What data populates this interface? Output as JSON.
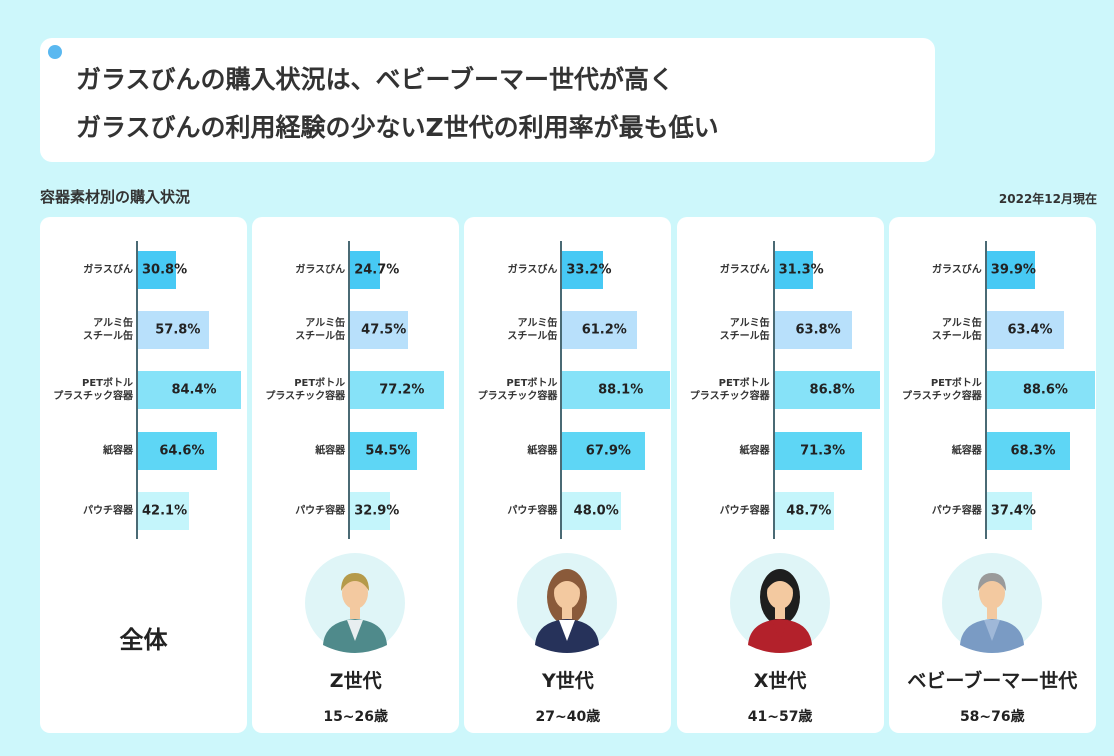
{
  "header": {
    "title": "ガラスびんの購入状況は、ベビーブーマー世代が高く\nガラスびんの利用経験の少ないZ世代の利用率が最も低い",
    "subtitle": "容器素材別の購入状況",
    "date": "2022年12月現在"
  },
  "chart_data": [
    {
      "type": "bar",
      "title": "全体",
      "categories": [
        "ガラスびん",
        "アルミ缶\nスチール缶",
        "PETボトル\nプラスチック容器",
        "紙容器",
        "パウチ容器"
      ],
      "values": [
        30.8,
        57.8,
        84.4,
        64.6,
        42.1
      ],
      "value_labels": [
        "30.8%",
        "57.8%",
        "84.4%",
        "64.6%",
        "42.1%"
      ],
      "colors": [
        "#47c9f4",
        "#b8e0fb",
        "#86e2f8",
        "#5ed6f5",
        "#c4f5fb"
      ]
    },
    {
      "type": "bar",
      "title": "Z世代",
      "subtitle": "15~26歳",
      "categories": [
        "ガラスびん",
        "アルミ缶\nスチール缶",
        "PETボトル\nプラスチック容器",
        "紙容器",
        "パウチ容器"
      ],
      "values": [
        24.7,
        47.5,
        77.2,
        54.5,
        32.9
      ],
      "value_labels": [
        "24.7%",
        "47.5%",
        "77.2%",
        "54.5%",
        "32.9%"
      ],
      "colors": [
        "#47c9f4",
        "#b8e0fb",
        "#86e2f8",
        "#5ed6f5",
        "#c4f5fb"
      ]
    },
    {
      "type": "bar",
      "title": "Y世代",
      "subtitle": "27~40歳",
      "categories": [
        "ガラスびん",
        "アルミ缶\nスチール缶",
        "PETボトル\nプラスチック容器",
        "紙容器",
        "パウチ容器"
      ],
      "values": [
        33.2,
        61.2,
        88.1,
        67.9,
        48.0
      ],
      "value_labels": [
        "33.2%",
        "61.2%",
        "88.1%",
        "67.9%",
        "48.0%"
      ],
      "colors": [
        "#47c9f4",
        "#b8e0fb",
        "#86e2f8",
        "#5ed6f5",
        "#c4f5fb"
      ]
    },
    {
      "type": "bar",
      "title": "X世代",
      "subtitle": "41~57歳",
      "categories": [
        "ガラスびん",
        "アルミ缶\nスチール缶",
        "PETボトル\nプラスチック容器",
        "紙容器",
        "パウチ容器"
      ],
      "values": [
        31.3,
        63.8,
        86.8,
        71.3,
        48.7
      ],
      "value_labels": [
        "31.3%",
        "63.8%",
        "86.8%",
        "71.3%",
        "48.7%"
      ],
      "colors": [
        "#47c9f4",
        "#b8e0fb",
        "#86e2f8",
        "#5ed6f5",
        "#c4f5fb"
      ]
    },
    {
      "type": "bar",
      "title": "ベビーブーマー世代",
      "subtitle": "58~76歳",
      "categories": [
        "ガラスびん",
        "アルミ缶\nスチール缶",
        "PETボトル\nプラスチック容器",
        "紙容器",
        "パウチ容器"
      ],
      "values": [
        39.9,
        63.4,
        88.6,
        68.3,
        37.4
      ],
      "value_labels": [
        "39.9%",
        "63.4%",
        "88.6%",
        "68.3%",
        "37.4%"
      ],
      "colors": [
        "#47c9f4",
        "#b8e0fb",
        "#86e2f8",
        "#5ed6f5",
        "#c4f5fb"
      ]
    }
  ]
}
